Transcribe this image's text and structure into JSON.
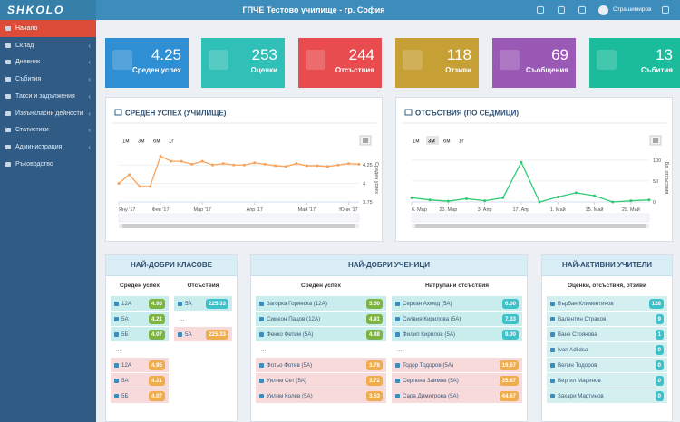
{
  "header": {
    "logo": "SHKOLO",
    "title": "ГПЧЕ Тестово училище - гр. София",
    "user": "Страшимиров"
  },
  "sidebar": [
    "Начало",
    "Склад",
    "Дневник",
    "Събития",
    "Такси и задължения",
    "Извънкласни дейности",
    "Статистики",
    "Администрация",
    "Ръководство"
  ],
  "cards": [
    {
      "value": 4.25,
      "label": "Среден успех"
    },
    {
      "value": 253,
      "label": "Оценки"
    },
    {
      "value": 244,
      "label": "Отсъствия"
    },
    {
      "value": 118,
      "label": "Отзиви"
    },
    {
      "value": 69,
      "label": "Съобщения"
    },
    {
      "value": 13,
      "label": "Събития"
    }
  ],
  "chart_data": [
    {
      "type": "line",
      "title": "СРЕДЕН УСПЕХ (УЧИЛИЩЕ)",
      "range_buttons": [
        "1м",
        "3м",
        "6м",
        "1г"
      ],
      "categories": [
        "Яну '17",
        null,
        null,
        null,
        "Фев '17",
        null,
        null,
        null,
        "Мар '17",
        null,
        null,
        null,
        null,
        "Апр '17",
        null,
        null,
        null,
        null,
        "Май '17",
        null,
        null,
        null,
        "Юни '17",
        null
      ],
      "series": [
        {
          "color": "#f7a35c",
          "values": [
            4.0,
            4.12,
            3.96,
            3.96,
            4.37,
            4.3,
            4.3,
            4.26,
            4.3,
            4.25,
            4.27,
            4.25,
            4.25,
            4.28,
            4.26,
            4.24,
            4.23,
            4.27,
            4.24,
            4.24,
            4.23,
            4.25,
            4.27,
            4.26
          ]
        }
      ],
      "y_axis_label": "Среден успех",
      "ylim": [
        3.75,
        4.4
      ],
      "yticks": [
        3.75,
        4,
        4.25
      ]
    },
    {
      "type": "line",
      "title": "ОТСЪСТВИЯ (ПО СЕДМИЦИ)",
      "range_buttons": [
        "1м",
        "3м",
        "6м",
        "1г"
      ],
      "selected_button": 1,
      "categories": [
        "6. Мар",
        null,
        "20. Мар",
        null,
        "3. Апр",
        null,
        "17. Апр",
        null,
        "1. Май",
        null,
        "15. Май",
        null,
        "29. Май",
        null
      ],
      "series": [
        {
          "color": "#2ecc71",
          "values": [
            10,
            5,
            2,
            8,
            3,
            10,
            95,
            0,
            12,
            22,
            15,
            0,
            3,
            5
          ]
        }
      ],
      "y_axis_label": "Бр. отсъствия",
      "ylim": [
        0,
        115
      ],
      "yticks": [
        0,
        50,
        100
      ]
    }
  ],
  "panels": [
    {
      "title": "НАЙ-ДОБРИ КЛАСОВЕ",
      "columns": [
        {
          "heading": "Среден успех",
          "top": [
            [
              "12А",
              "4.95"
            ],
            [
              "5А",
              "4.21"
            ],
            [
              "5Б",
              "4.07"
            ]
          ],
          "gap": "...",
          "bottom": [
            [
              "12А",
              "4.95"
            ],
            [
              "5А",
              "4.21"
            ],
            [
              "5Б",
              "4.07"
            ]
          ]
        },
        {
          "heading": "Отсъствия",
          "top": [
            [
              "5А",
              "225.33"
            ]
          ],
          "gap": "...",
          "bottom": [
            [
              "5А",
              "225.33"
            ]
          ]
        }
      ]
    },
    {
      "title": "НАЙ-ДОБРИ УЧЕНИЦИ",
      "columns": [
        {
          "heading": "Среден успех",
          "top": [
            [
              "Загорка Горянска (12А)",
              "5.50"
            ],
            [
              "Симеон Пацов (12А)",
              "4.91"
            ],
            [
              "Фенко Фетим (5А)",
              "4.88"
            ]
          ],
          "gap": "...",
          "bottom": [
            [
              "Фотьо Фотев (5А)",
              "3.76"
            ],
            [
              "Уилям Сет (5А)",
              "3.72"
            ],
            [
              "Уилям Колев (5А)",
              "3.53"
            ]
          ]
        },
        {
          "heading": "Натрупани отсъствия",
          "top": [
            [
              "Серкан Ахмед (5А)",
              "6.00"
            ],
            [
              "Силвия Кирилова (5А)",
              "7.33"
            ],
            [
              "Филип Кирилов (5А)",
              "9.00"
            ]
          ],
          "gap": "...",
          "bottom": [
            [
              "Тодор Тодоров (5А)",
              "19.67"
            ],
            [
              "Сергюна Заимов (5А)",
              "35.67"
            ],
            [
              "Сара Димитрова (5А)",
              "44.67"
            ]
          ]
        }
      ]
    },
    {
      "title": "НАЙ-АКТИВНИ УЧИТЕЛИ",
      "columns": [
        {
          "heading": "Оценки, отсъствия, отзиви",
          "top": [
            [
              "Върбан Климентинов",
              "128"
            ],
            [
              "Валентин Страхов",
              "9"
            ],
            [
              "Ване Стоянова",
              "1"
            ],
            [
              "Ivan Adlidsa",
              "0"
            ],
            [
              "Велин Тодоров",
              "0"
            ],
            [
              "Вергил Маринов",
              "0"
            ],
            [
              "Захари Мартинов",
              "0"
            ]
          ]
        }
      ]
    }
  ]
}
